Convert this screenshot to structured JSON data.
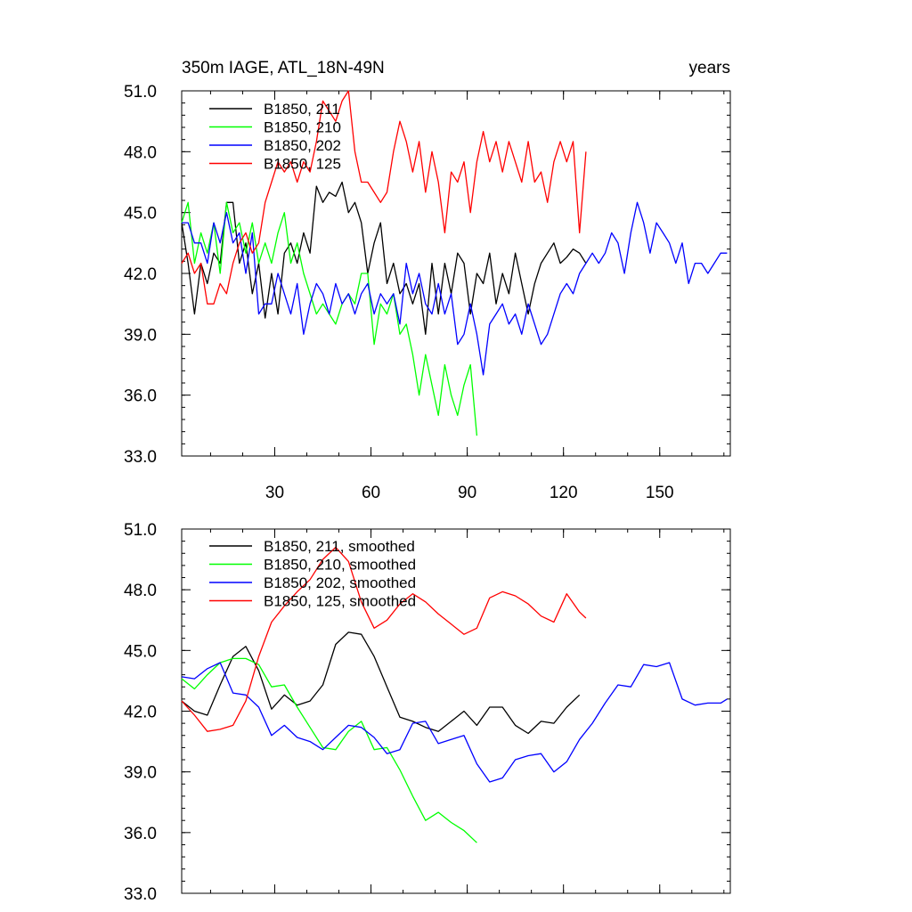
{
  "chart_data": [
    {
      "type": "line",
      "title": "350m IAGE, ATL_18N-49N",
      "title_right": "years",
      "xlim": [
        1,
        172
      ],
      "ylim": [
        33,
        51
      ],
      "xticks": [
        30,
        60,
        90,
        120,
        150
      ],
      "xtick_labels": [
        "30",
        "60",
        "90",
        "120",
        "150"
      ],
      "yticks": [
        33,
        36,
        39,
        42,
        45,
        48,
        51
      ],
      "ytick_labels": [
        "33.0",
        "36.0",
        "39.0",
        "42.0",
        "45.0",
        "48.0",
        "51.0"
      ],
      "legend_position": "top-left",
      "series": [
        {
          "name": "B1850, 211",
          "color": "#000000",
          "x": [
            1,
            3,
            5,
            7,
            9,
            11,
            13,
            15,
            17,
            19,
            21,
            23,
            25,
            27,
            29,
            31,
            33,
            35,
            37,
            39,
            41,
            43,
            45,
            47,
            49,
            51,
            53,
            55,
            57,
            59,
            61,
            63,
            65,
            67,
            69,
            71,
            73,
            75,
            77,
            79,
            81,
            83,
            85,
            87,
            89,
            91,
            93,
            95,
            97,
            99,
            101,
            103,
            105,
            107,
            109,
            111,
            113,
            115,
            117,
            119,
            121,
            123,
            125,
            127
          ],
          "y": [
            44.5,
            42.5,
            40.0,
            42.5,
            41.5,
            43.0,
            42.5,
            45.5,
            45.5,
            42.5,
            43.5,
            41.0,
            42.5,
            39.8,
            42.0,
            40.0,
            43.0,
            43.5,
            42.5,
            44.0,
            43.0,
            46.3,
            45.5,
            46.0,
            45.8,
            46.5,
            45.0,
            45.5,
            44.5,
            42.0,
            43.5,
            44.5,
            41.5,
            42.5,
            41.0,
            41.5,
            40.5,
            41.5,
            39.0,
            42.5,
            40.0,
            42.5,
            41.0,
            43.0,
            42.5,
            40.0,
            42.0,
            41.5,
            43.0,
            40.5,
            42.0,
            41.0,
            43.0,
            41.5,
            40.0,
            41.5,
            42.5,
            43.0,
            43.5,
            42.5,
            42.8,
            43.2,
            43.0,
            42.5
          ]
        },
        {
          "name": "B1850, 210",
          "color": "#00ff00",
          "x": [
            1,
            3,
            5,
            7,
            9,
            11,
            13,
            15,
            17,
            19,
            21,
            23,
            25,
            27,
            29,
            31,
            33,
            35,
            37,
            39,
            41,
            43,
            45,
            47,
            49,
            51,
            53,
            55,
            57,
            59,
            61,
            63,
            65,
            67,
            69,
            71,
            73,
            75,
            77,
            79,
            81,
            83,
            85,
            87,
            89,
            91,
            93
          ],
          "y": [
            44.5,
            45.5,
            42.5,
            44.0,
            43.0,
            44.5,
            42.0,
            45.5,
            44.0,
            44.5,
            43.0,
            44.5,
            42.5,
            43.5,
            42.5,
            44.0,
            45.0,
            42.5,
            43.5,
            42.0,
            41.0,
            40.0,
            40.5,
            40.0,
            39.5,
            40.5,
            41.0,
            40.5,
            42.0,
            42.0,
            38.5,
            40.5,
            40.0,
            41.0,
            39.0,
            39.5,
            38.0,
            36.0,
            38.0,
            36.5,
            35.0,
            37.5,
            36.0,
            35.0,
            36.5,
            37.5,
            34.0
          ]
        },
        {
          "name": "B1850, 202",
          "color": "#0000ff",
          "x": [
            1,
            3,
            5,
            7,
            9,
            11,
            13,
            15,
            17,
            19,
            21,
            23,
            25,
            27,
            29,
            31,
            33,
            35,
            37,
            39,
            41,
            43,
            45,
            47,
            49,
            51,
            53,
            55,
            57,
            59,
            61,
            63,
            65,
            67,
            69,
            71,
            73,
            75,
            77,
            79,
            81,
            83,
            85,
            87,
            89,
            91,
            93,
            95,
            97,
            99,
            101,
            103,
            105,
            107,
            109,
            111,
            113,
            115,
            117,
            119,
            121,
            123,
            125,
            127,
            129,
            131,
            133,
            135,
            137,
            139,
            141,
            143,
            145,
            147,
            149,
            151,
            153,
            155,
            157,
            159,
            161,
            163,
            165,
            167,
            169,
            171
          ],
          "y": [
            44.5,
            44.5,
            43.5,
            43.5,
            42.5,
            44.5,
            43.5,
            45.0,
            43.5,
            44.0,
            42.0,
            44.0,
            40.0,
            40.5,
            40.5,
            42.0,
            41.0,
            40.0,
            41.5,
            39.0,
            40.5,
            41.5,
            41.0,
            40.0,
            41.5,
            40.5,
            41.0,
            40.0,
            41.0,
            41.5,
            40.0,
            41.0,
            40.5,
            41.0,
            39.5,
            42.5,
            41.0,
            42.0,
            40.5,
            40.0,
            41.5,
            40.0,
            41.0,
            38.5,
            39.0,
            40.5,
            39.0,
            37.0,
            39.5,
            40.0,
            40.5,
            39.5,
            40.0,
            39.0,
            40.5,
            39.5,
            38.5,
            39.0,
            40.0,
            41.0,
            41.5,
            41.0,
            42.0,
            42.5,
            43.0,
            42.5,
            43.0,
            44.0,
            43.5,
            42.0,
            44.0,
            45.5,
            44.5,
            43.0,
            44.5,
            44.0,
            43.5,
            42.5,
            43.5,
            41.5,
            42.5,
            42.5,
            42.0,
            42.5,
            43.0,
            43.0
          ]
        },
        {
          "name": "B1850, 125",
          "color": "#ff0000",
          "x": [
            1,
            3,
            5,
            7,
            9,
            11,
            13,
            15,
            17,
            19,
            21,
            23,
            25,
            27,
            29,
            31,
            33,
            35,
            37,
            39,
            41,
            43,
            45,
            47,
            49,
            51,
            53,
            55,
            57,
            59,
            61,
            63,
            65,
            67,
            69,
            71,
            73,
            75,
            77,
            79,
            81,
            83,
            85,
            87,
            89,
            91,
            93,
            95,
            97,
            99,
            101,
            103,
            105,
            107,
            109,
            111,
            113,
            115,
            117,
            119,
            121,
            123,
            125,
            127
          ],
          "y": [
            42.5,
            43.0,
            42.0,
            42.5,
            40.5,
            40.5,
            41.5,
            41.0,
            42.5,
            43.5,
            44.0,
            43.0,
            43.5,
            45.5,
            46.5,
            47.5,
            47.0,
            47.5,
            46.5,
            47.5,
            47.0,
            48.5,
            50.5,
            50.0,
            49.5,
            50.5,
            51.0,
            48.0,
            46.5,
            46.5,
            46.0,
            45.5,
            46.0,
            48.0,
            49.5,
            48.5,
            47.0,
            48.5,
            46.0,
            48.0,
            46.5,
            44.0,
            47.0,
            46.5,
            47.5,
            45.0,
            47.5,
            49.0,
            47.5,
            48.5,
            47.0,
            48.5,
            47.5,
            46.5,
            48.5,
            46.5,
            47.0,
            45.5,
            47.5,
            48.5,
            47.5,
            48.5,
            44.0,
            48.0
          ]
        }
      ]
    },
    {
      "type": "line",
      "title": "",
      "xlim": [
        1,
        172
      ],
      "ylim": [
        33,
        51
      ],
      "xticks": [
        30,
        60,
        90,
        120,
        150
      ],
      "xtick_labels": [],
      "yticks": [
        33,
        36,
        39,
        42,
        45,
        48,
        51
      ],
      "ytick_labels": [
        "33.0",
        "36.0",
        "39.0",
        "42.0",
        "45.0",
        "48.0",
        "51.0"
      ],
      "legend_position": "top-left",
      "series": [
        {
          "name": "B1850, 211, smoothed",
          "color": "#000000",
          "x": [
            1,
            5,
            9,
            13,
            17,
            21,
            25,
            29,
            33,
            37,
            41,
            45,
            49,
            53,
            57,
            61,
            65,
            69,
            73,
            77,
            81,
            85,
            89,
            93,
            97,
            101,
            105,
            109,
            113,
            117,
            121,
            125
          ],
          "y": [
            42.5,
            42.0,
            41.8,
            43.3,
            44.7,
            45.2,
            44.0,
            42.1,
            42.8,
            42.3,
            42.5,
            43.3,
            45.3,
            45.9,
            45.8,
            44.7,
            43.2,
            41.7,
            41.5,
            41.2,
            41.0,
            41.5,
            42.0,
            41.3,
            42.2,
            42.2,
            41.3,
            40.9,
            41.5,
            41.4,
            42.2,
            42.8
          ]
        },
        {
          "name": "B1850, 210, smoothed",
          "color": "#00ff00",
          "x": [
            1,
            5,
            9,
            13,
            17,
            21,
            25,
            29,
            33,
            37,
            41,
            45,
            49,
            53,
            57,
            61,
            65,
            69,
            73,
            77,
            81,
            85,
            89,
            93
          ],
          "y": [
            43.6,
            43.1,
            43.8,
            44.4,
            44.6,
            44.6,
            44.3,
            43.2,
            43.3,
            42.2,
            41.2,
            40.2,
            40.1,
            41.0,
            41.5,
            40.1,
            40.2,
            39.1,
            37.8,
            36.6,
            37.0,
            36.5,
            36.1,
            35.5
          ]
        },
        {
          "name": "B1850, 202, smoothed",
          "color": "#0000ff",
          "x": [
            1,
            5,
            9,
            13,
            17,
            21,
            25,
            29,
            33,
            37,
            41,
            45,
            49,
            53,
            57,
            61,
            65,
            69,
            73,
            77,
            81,
            85,
            89,
            93,
            97,
            101,
            105,
            109,
            113,
            117,
            121,
            125,
            129,
            133,
            137,
            141,
            145,
            149,
            153,
            157,
            161,
            165,
            169,
            171
          ],
          "y": [
            43.7,
            43.6,
            44.1,
            44.4,
            42.9,
            42.8,
            42.2,
            40.8,
            41.3,
            40.7,
            40.5,
            40.1,
            40.7,
            41.3,
            41.2,
            40.7,
            39.9,
            40.1,
            41.4,
            41.5,
            40.4,
            40.6,
            40.8,
            39.4,
            38.5,
            38.7,
            39.6,
            39.8,
            39.9,
            39.0,
            39.5,
            40.6,
            41.4,
            42.4,
            43.3,
            43.2,
            44.3,
            44.2,
            44.4,
            42.6,
            42.3,
            42.4,
            42.4,
            42.6
          ]
        },
        {
          "name": "B1850, 125, smoothed",
          "color": "#ff0000",
          "x": [
            1,
            5,
            9,
            13,
            17,
            21,
            25,
            29,
            33,
            37,
            41,
            45,
            49,
            53,
            57,
            61,
            65,
            69,
            73,
            77,
            81,
            85,
            89,
            93,
            97,
            101,
            105,
            109,
            113,
            117,
            121,
            125,
            127
          ],
          "y": [
            42.5,
            41.8,
            41.0,
            41.1,
            41.3,
            42.5,
            44.7,
            46.4,
            47.2,
            47.9,
            48.5,
            49.5,
            50.1,
            49.4,
            47.4,
            46.1,
            46.5,
            47.3,
            47.8,
            47.4,
            46.8,
            46.3,
            45.8,
            46.1,
            47.6,
            47.9,
            47.7,
            47.3,
            46.7,
            46.4,
            47.8,
            46.9,
            46.6
          ]
        }
      ]
    }
  ]
}
